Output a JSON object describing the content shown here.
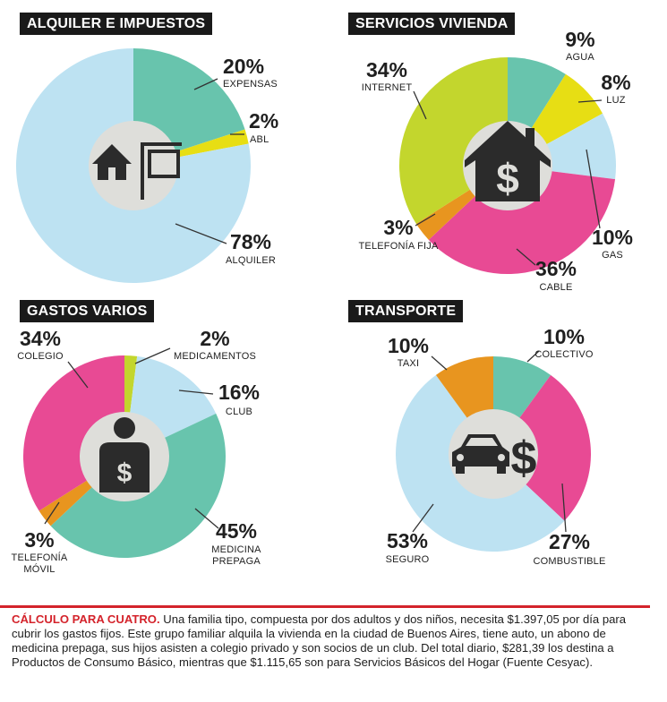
{
  "colors": {
    "teal": "#68c4ad",
    "yellow": "#e7de14",
    "lightblue": "#bde2f2",
    "pink": "#e84a94",
    "lime": "#c3d62d",
    "orange": "#e8951f",
    "center": "#dededa",
    "icon": "#2b2b2b",
    "accent_red": "#d4232b"
  },
  "chart_data": [
    {
      "type": "pie",
      "title": "ALQUILER E IMPUESTOS",
      "center_icon": "house-sign-icon",
      "slices": [
        {
          "label": "EXPENSAS",
          "value": 20,
          "pct_text": "20%",
          "color": "#68c4ad"
        },
        {
          "label": "ABL",
          "value": 2,
          "pct_text": "2%",
          "color": "#e7de14"
        },
        {
          "label": "ALQUILER",
          "value": 78,
          "pct_text": "78%",
          "color": "#bde2f2"
        }
      ]
    },
    {
      "type": "pie",
      "title": "SERVICIOS VIVIENDA",
      "center_icon": "house-dollar-icon",
      "slices": [
        {
          "label": "AGUA",
          "value": 9,
          "pct_text": "9%",
          "color": "#68c4ad"
        },
        {
          "label": "LUZ",
          "value": 8,
          "pct_text": "8%",
          "color": "#e7de14"
        },
        {
          "label": "GAS",
          "value": 10,
          "pct_text": "10%",
          "color": "#bde2f2"
        },
        {
          "label": "CABLE",
          "value": 36,
          "pct_text": "36%",
          "color": "#e84a94"
        },
        {
          "label": "TELEFONÍA FIJA",
          "value": 3,
          "pct_text": "3%",
          "color": "#e8951f"
        },
        {
          "label": "INTERNET",
          "value": 34,
          "pct_text": "34%",
          "color": "#c3d62d"
        }
      ]
    },
    {
      "type": "pie",
      "title": "GASTOS VARIOS",
      "center_icon": "person-dollar-icon",
      "slices": [
        {
          "label": "MEDICAMENTOS",
          "value": 2,
          "pct_text": "2%",
          "color": "#c3d62d"
        },
        {
          "label": "CLUB",
          "value": 16,
          "pct_text": "16%",
          "color": "#bde2f2"
        },
        {
          "label": "MEDICINA PREPAGA",
          "value": 45,
          "pct_text": "45%",
          "color": "#68c4ad"
        },
        {
          "label": "TELEFONÍA MÓVIL",
          "value": 3,
          "pct_text": "3%",
          "color": "#e8951f"
        },
        {
          "label": "COLEGIO",
          "value": 34,
          "pct_text": "34%",
          "color": "#e84a94"
        }
      ]
    },
    {
      "type": "pie",
      "title": "TRANSPORTE",
      "center_icon": "car-dollar-icon",
      "slices": [
        {
          "label": "COLECTIVO",
          "value": 10,
          "pct_text": "10%",
          "color": "#68c4ad"
        },
        {
          "label": "COMBUSTIBLE",
          "value": 27,
          "pct_text": "27%",
          "color": "#e84a94"
        },
        {
          "label": "SEGURO",
          "value": 53,
          "pct_text": "53%",
          "color": "#bde2f2"
        },
        {
          "label": "TAXI",
          "value": 10,
          "pct_text": "10%",
          "color": "#e8951f"
        }
      ]
    }
  ],
  "footer": {
    "lead": "CÁLCULO PARA CUATRO.",
    "text": "Una familia tipo, compuesta por dos adultos y dos niños, necesita $1.397,05 por día para cubrir los gastos fijos. Este grupo familiar alquila la vivienda en la ciudad de Buenos Aires, tiene auto, un abono de medicina prepaga, sus hijos asisten a colegio privado y son socios de un club. Del total diario, $281,39 los destina a Productos de Consumo Básico, mientras que $1.115,65 son para Servicios Básicos del Hogar (Fuente Cesyac)."
  }
}
